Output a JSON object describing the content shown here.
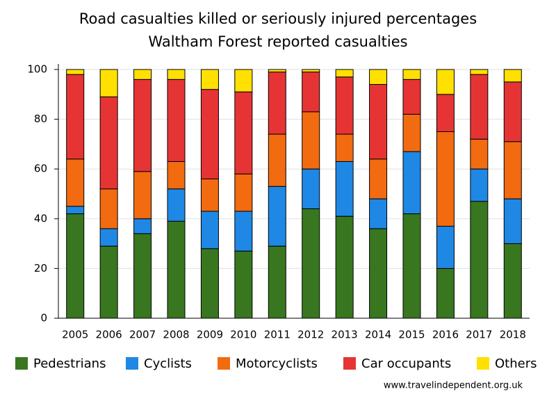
{
  "chart_data": {
    "type": "stacked_bar",
    "title": "Road casualties killed or seriously injured percentages",
    "subtitle": "Waltham Forest reported casualties",
    "source": "www.travelindependent.org.uk",
    "categories": [
      "2005",
      "2006",
      "2007",
      "2008",
      "2009",
      "2010",
      "2011",
      "2012",
      "2013",
      "2014",
      "2015",
      "2016",
      "2017",
      "2018"
    ],
    "series": [
      {
        "name": "Pedestrians",
        "color": "#38771f",
        "values": [
          42,
          29,
          34,
          39,
          28,
          27,
          29,
          44,
          41,
          36,
          42,
          20,
          47,
          30
        ]
      },
      {
        "name": "Cyclists",
        "color": "#1f88e5",
        "values": [
          3,
          7,
          6,
          13,
          15,
          16,
          24,
          16,
          22,
          12,
          25,
          17,
          13,
          18
        ]
      },
      {
        "name": "Motorcyclists",
        "color": "#f26b10",
        "values": [
          19,
          16,
          19,
          11,
          13,
          15,
          21,
          23,
          11,
          16,
          15,
          38,
          12,
          23
        ]
      },
      {
        "name": "Car occupants",
        "color": "#e63434",
        "values": [
          34,
          37,
          37,
          33,
          36,
          33,
          25,
          16,
          23,
          30,
          14,
          15,
          26,
          24
        ]
      },
      {
        "name": "Others",
        "color": "#ffe000",
        "values": [
          2,
          11,
          4,
          4,
          8,
          9,
          1,
          1,
          3,
          6,
          4,
          10,
          2,
          5
        ]
      }
    ],
    "ylim": [
      0,
      100
    ],
    "yticks": [
      0,
      20,
      40,
      60,
      80,
      100
    ],
    "grid": true
  }
}
